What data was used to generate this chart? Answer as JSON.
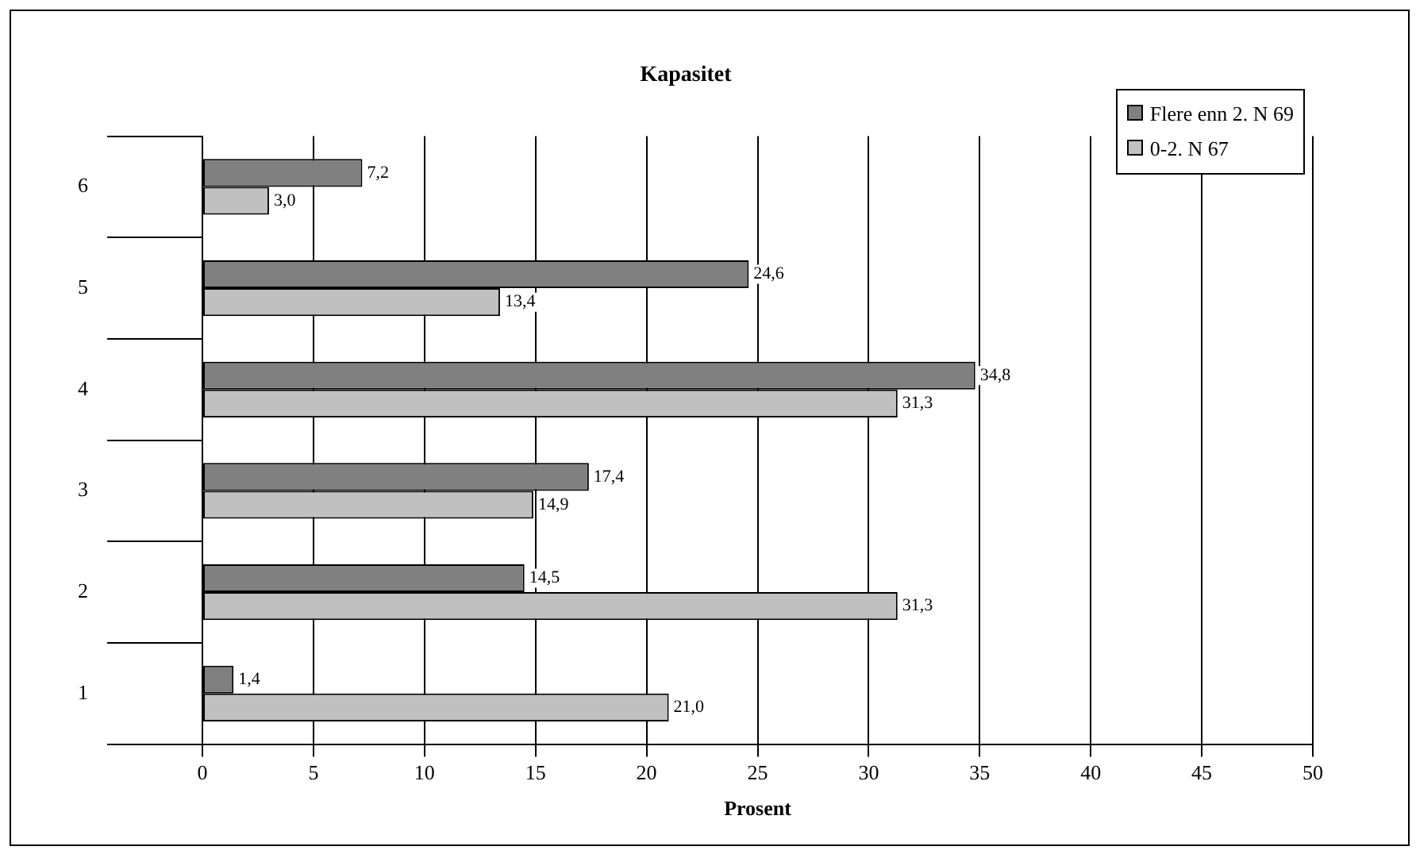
{
  "chart_data": {
    "type": "bar",
    "orientation": "horizontal",
    "title": "Kapasitet",
    "xlabel": "Prosent",
    "categories": [
      "6",
      "5",
      "4",
      "3",
      "2",
      "1"
    ],
    "series": [
      {
        "name": "Flere enn 2. N 69",
        "color": "#808080",
        "values": [
          7.2,
          24.6,
          34.8,
          17.4,
          14.5,
          1.4
        ],
        "value_labels": [
          "7,2",
          "24,6",
          "34,8",
          "17,4",
          "14,5",
          "1,4"
        ]
      },
      {
        "name": "0-2. N 67",
        "color": "#c0c0c0",
        "values": [
          3.0,
          13.4,
          31.3,
          14.9,
          31.3,
          21.0
        ],
        "value_labels": [
          "3,0",
          "13,4",
          "31,3",
          "14,9",
          "31,3",
          "21,0"
        ]
      }
    ],
    "xlim": [
      0,
      50
    ],
    "xticks": [
      0,
      5,
      10,
      15,
      20,
      25,
      30,
      35,
      40,
      45,
      50
    ],
    "grid": "x",
    "legend": "top right"
  }
}
